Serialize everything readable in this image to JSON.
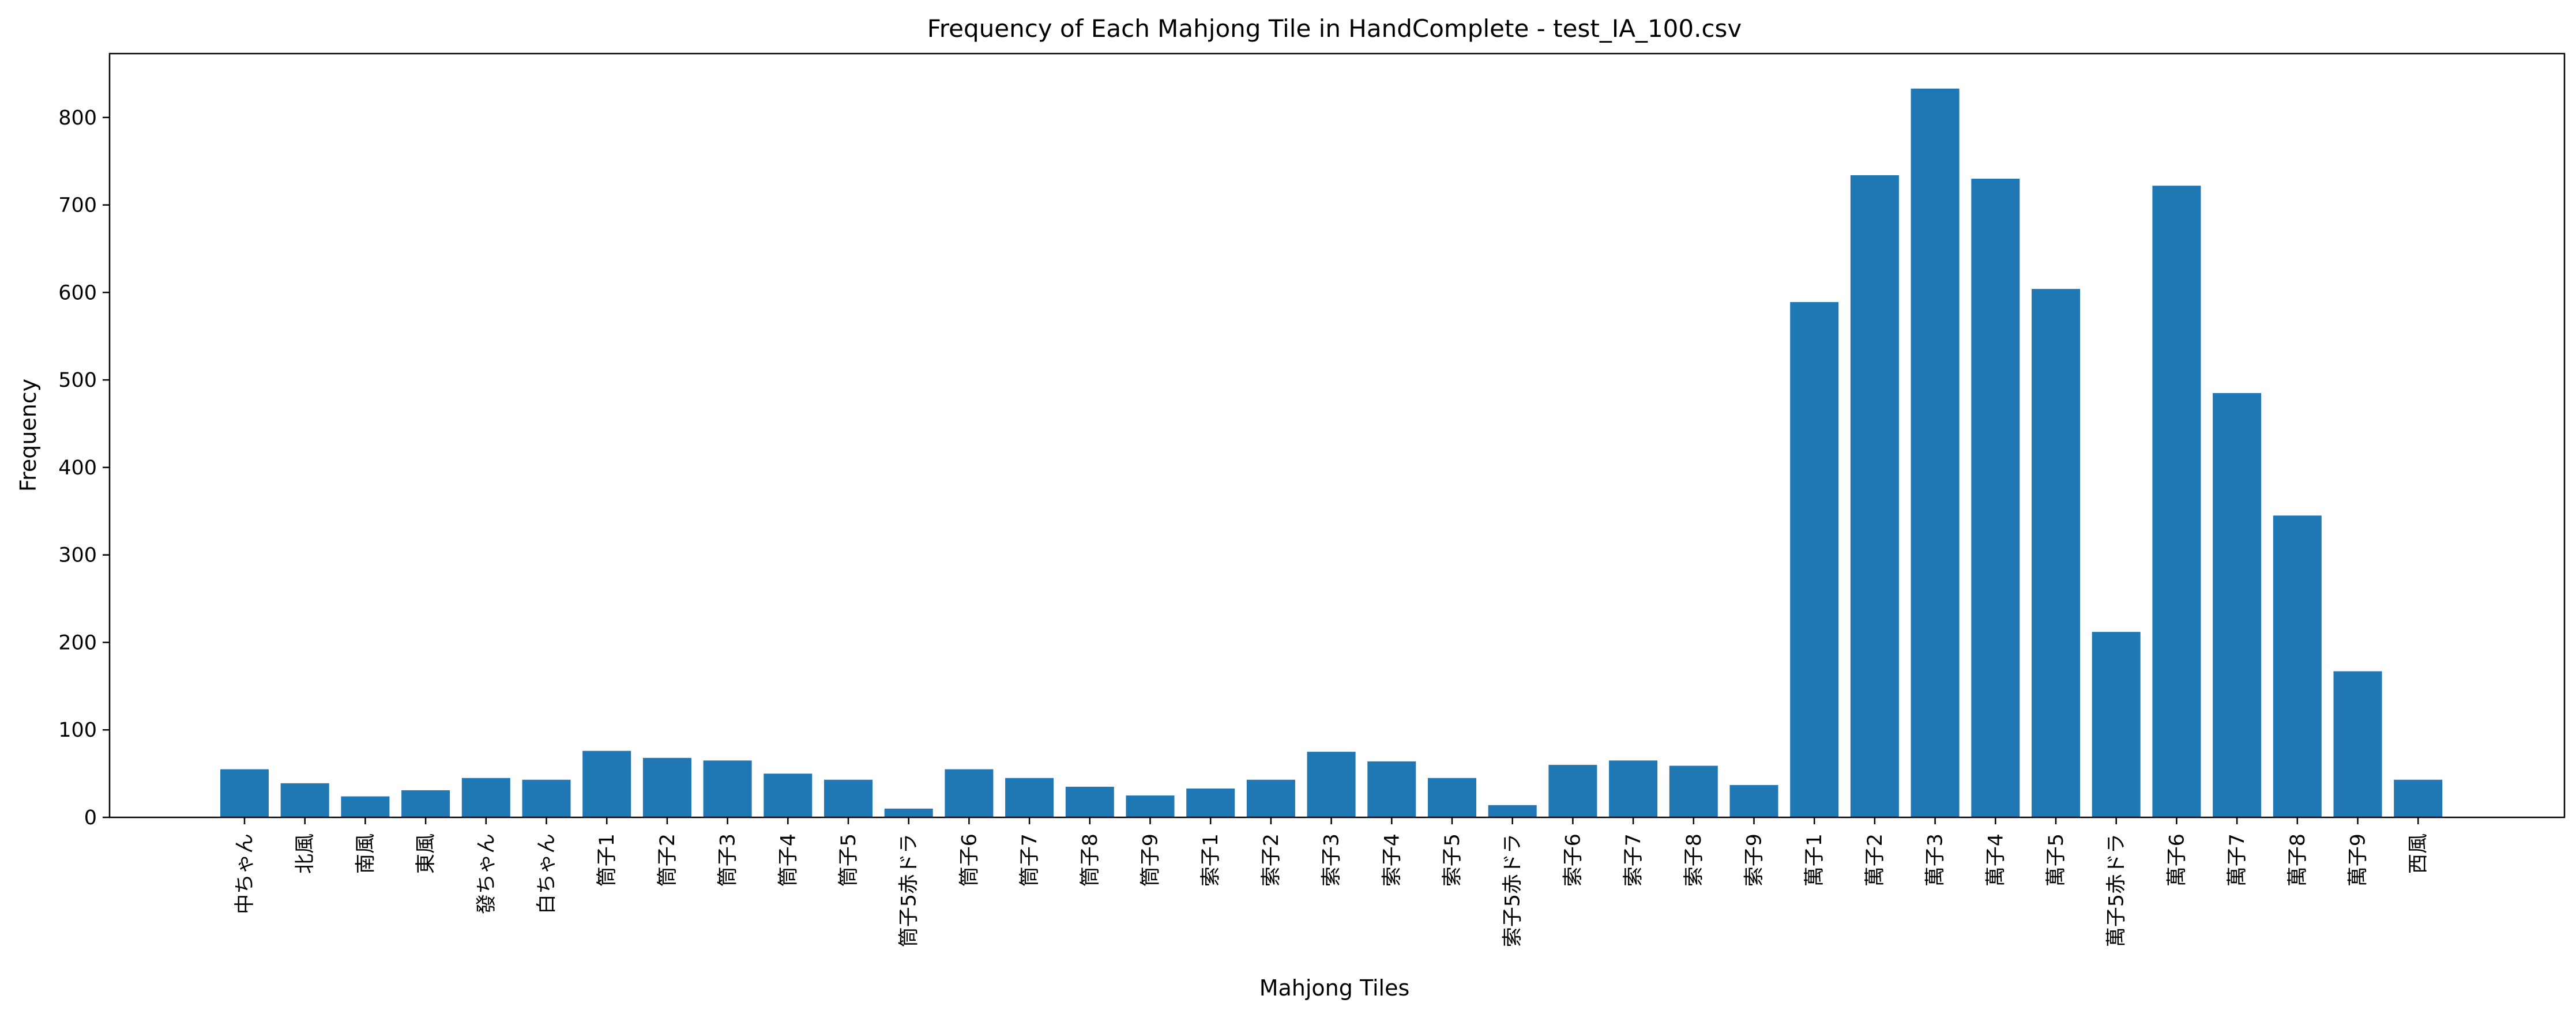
{
  "chart_data": {
    "type": "bar",
    "title": "Frequency of Each Mahjong Tile in HandComplete - test_IA_100.csv",
    "xlabel": "Mahjong Tiles",
    "ylabel": "Frequency",
    "ylim": [
      0,
      873
    ],
    "yticks": [
      0,
      100,
      200,
      300,
      400,
      500,
      600,
      700,
      800
    ],
    "bar_color": "#1f77b4",
    "grid": false,
    "categories": [
      "中ちゃん",
      "北風",
      "南風",
      "東風",
      "發ちゃん",
      "白ちゃん",
      "筒子1",
      "筒子2",
      "筒子3",
      "筒子4",
      "筒子5",
      "筒子5赤ドラ",
      "筒子6",
      "筒子7",
      "筒子8",
      "筒子9",
      "索子1",
      "索子2",
      "索子3",
      "索子4",
      "索子5",
      "索子5赤ドラ",
      "索子6",
      "索子7",
      "索子8",
      "索子9",
      "萬子1",
      "萬子2",
      "萬子3",
      "萬子4",
      "萬子5",
      "萬子5赤ドラ",
      "萬子6",
      "萬子7",
      "萬子8",
      "萬子9",
      "西風"
    ],
    "values": [
      55,
      39,
      24,
      31,
      45,
      43,
      76,
      68,
      65,
      50,
      43,
      10,
      55,
      45,
      35,
      25,
      33,
      43,
      75,
      64,
      45,
      14,
      60,
      65,
      59,
      37,
      589,
      734,
      833,
      730,
      604,
      212,
      722,
      485,
      345,
      167,
      43
    ]
  }
}
